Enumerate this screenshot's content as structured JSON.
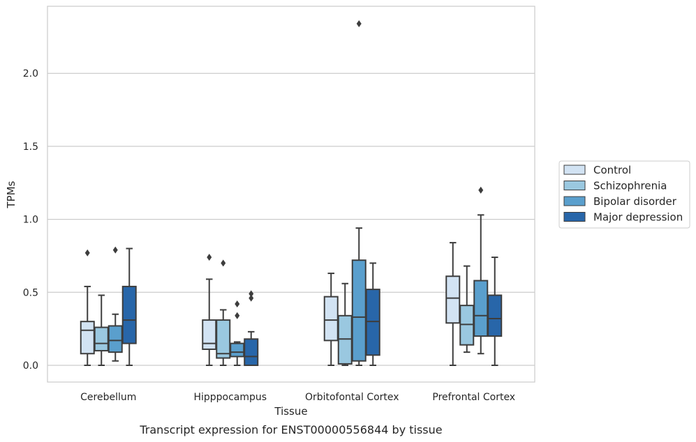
{
  "chart_data": {
    "type": "boxplot",
    "caption": "Transcript expression for ENST00000556844 by tissue",
    "xlabel": "Tissue",
    "ylabel": "TPMs",
    "ylim": [
      -0.11,
      2.47
    ],
    "yticks": [
      0.0,
      0.5,
      1.0,
      1.5,
      2.0
    ],
    "ytick_labels": [
      "0.0",
      "0.5",
      "1.0",
      "1.5",
      "2.0"
    ],
    "grid": "horizontal",
    "legend_position": "right-outside",
    "categories": [
      "Cerebellum",
      "Hipppocampus",
      "Orbitofontal Cortex",
      "Prefrontal Cortex"
    ],
    "series": [
      {
        "name": "Control",
        "color": "#d2e3f3",
        "boxes": [
          {
            "whislo": 0.0,
            "q1": 0.08,
            "med": 0.24,
            "q3": 0.3,
            "whishi": 0.54,
            "fliers": [
              0.77
            ]
          },
          {
            "whislo": 0.0,
            "q1": 0.11,
            "med": 0.15,
            "q3": 0.31,
            "whishi": 0.59,
            "fliers": [
              0.74
            ]
          },
          {
            "whislo": 0.0,
            "q1": 0.17,
            "med": 0.31,
            "q3": 0.47,
            "whishi": 0.63,
            "fliers": []
          },
          {
            "whislo": 0.0,
            "q1": 0.29,
            "med": 0.46,
            "q3": 0.61,
            "whishi": 0.84,
            "fliers": []
          }
        ]
      },
      {
        "name": "Schizophrenia",
        "color": "#9ac8e0",
        "boxes": [
          {
            "whislo": 0.0,
            "q1": 0.1,
            "med": 0.15,
            "q3": 0.26,
            "whishi": 0.48,
            "fliers": []
          },
          {
            "whislo": 0.0,
            "q1": 0.05,
            "med": 0.08,
            "q3": 0.31,
            "whishi": 0.38,
            "fliers": [
              0.7
            ]
          },
          {
            "whislo": 0.0,
            "q1": 0.01,
            "med": 0.18,
            "q3": 0.34,
            "whishi": 0.56,
            "fliers": []
          },
          {
            "whislo": 0.09,
            "q1": 0.14,
            "med": 0.28,
            "q3": 0.41,
            "whishi": 0.68,
            "fliers": []
          }
        ]
      },
      {
        "name": "Bipolar disorder",
        "color": "#5a9fcd",
        "boxes": [
          {
            "whislo": 0.03,
            "q1": 0.09,
            "med": 0.17,
            "q3": 0.27,
            "whishi": 0.35,
            "fliers": [
              0.79
            ]
          },
          {
            "whislo": 0.0,
            "q1": 0.06,
            "med": 0.09,
            "q3": 0.15,
            "whishi": 0.16,
            "fliers": [
              0.34,
              0.42
            ]
          },
          {
            "whislo": 0.0,
            "q1": 0.03,
            "med": 0.33,
            "q3": 0.72,
            "whishi": 0.94,
            "fliers": [
              2.34
            ]
          },
          {
            "whislo": 0.08,
            "q1": 0.2,
            "med": 0.34,
            "q3": 0.58,
            "whishi": 1.03,
            "fliers": [
              1.2
            ]
          }
        ]
      },
      {
        "name": "Major depression",
        "color": "#2866a9",
        "boxes": [
          {
            "whislo": 0.0,
            "q1": 0.15,
            "med": 0.31,
            "q3": 0.54,
            "whishi": 0.8,
            "fliers": []
          },
          {
            "whislo": 0.0,
            "q1": 0.0,
            "med": 0.06,
            "q3": 0.18,
            "whishi": 0.23,
            "fliers": [
              0.46,
              0.49
            ]
          },
          {
            "whislo": 0.0,
            "q1": 0.07,
            "med": 0.3,
            "q3": 0.52,
            "whishi": 0.7,
            "fliers": []
          },
          {
            "whislo": 0.0,
            "q1": 0.2,
            "med": 0.32,
            "q3": 0.48,
            "whishi": 0.74,
            "fliers": []
          }
        ]
      }
    ]
  }
}
